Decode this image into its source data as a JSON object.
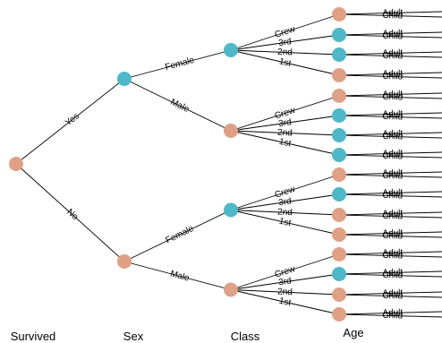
{
  "levels": [
    "Survived",
    "Sex",
    "Class",
    "Age"
  ],
  "colors": {
    "salmon": "#e0a085",
    "teal": "#4db8c8"
  },
  "tree": {
    "root_color": "salmon",
    "branches": [
      {
        "label": "Yes",
        "color": "teal",
        "children": [
          {
            "label": "Female",
            "color": "teal",
            "children": [
              {
                "label": "Crew",
                "color": "salmon"
              },
              {
                "label": "3rd",
                "color": "teal"
              },
              {
                "label": "2nd",
                "color": "teal"
              },
              {
                "label": "1st",
                "color": "salmon"
              }
            ]
          },
          {
            "label": "Male",
            "color": "salmon",
            "children": [
              {
                "label": "Crew",
                "color": "salmon"
              },
              {
                "label": "3rd",
                "color": "teal"
              },
              {
                "label": "2nd",
                "color": "teal"
              },
              {
                "label": "1st",
                "color": "teal"
              }
            ]
          }
        ]
      },
      {
        "label": "No",
        "color": "salmon",
        "children": [
          {
            "label": "Female",
            "color": "teal",
            "children": [
              {
                "label": "Crew",
                "color": "salmon"
              },
              {
                "label": "3rd",
                "color": "teal"
              },
              {
                "label": "2nd",
                "color": "salmon"
              },
              {
                "label": "1st",
                "color": "salmon"
              }
            ]
          },
          {
            "label": "Male",
            "color": "salmon",
            "children": [
              {
                "label": "Crew",
                "color": "salmon"
              },
              {
                "label": "3rd",
                "color": "teal"
              },
              {
                "label": "2nd",
                "color": "salmon"
              },
              {
                "label": "1st",
                "color": "salmon"
              }
            ]
          }
        ]
      }
    ]
  },
  "age_labels": [
    "Adult",
    "Child"
  ]
}
